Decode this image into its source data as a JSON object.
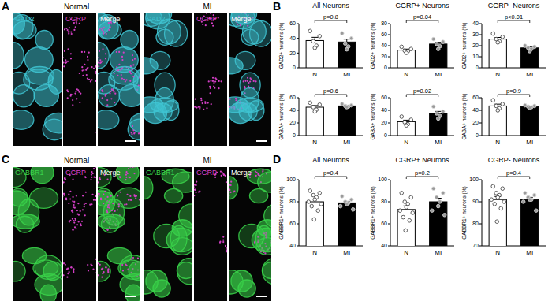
{
  "panel_labels": [
    "A",
    "B",
    "C",
    "D"
  ],
  "image_panels": [
    {
      "conditions": [
        "Normal",
        "MI"
      ],
      "channels": [
        "GAD2",
        "CGRP",
        "Merge"
      ],
      "channel_colors": [
        "#3fc4d2",
        "#d43fc6"
      ]
    },
    {
      "conditions": [
        "Normal",
        "MI"
      ],
      "channels": [
        "GABBR1",
        "CGRP",
        "Merge"
      ],
      "channel_colors": [
        "#3ad24a",
        "#d43fc6"
      ]
    }
  ],
  "chart_data": [
    {
      "type": "bar",
      "title": "All Neurons",
      "categories": [
        "N",
        "MI"
      ],
      "values": [
        37,
        35
      ],
      "errors": [
        4.4,
        3.9
      ],
      "points": [
        [
          50,
          43,
          36,
          30,
          27
        ],
        [
          47,
          40,
          33,
          29,
          25
        ]
      ],
      "ylabel": "GAD2+ neurons (%)",
      "ylim": [
        0,
        60
      ],
      "yticks": [
        0,
        20,
        40,
        60
      ],
      "colors": [
        "#ffffff",
        "#000000"
      ],
      "annotation": "p=0.8"
    },
    {
      "type": "bar",
      "title": "CGRP+ Neurons",
      "categories": [
        "N",
        "MI"
      ],
      "values": [
        32,
        43
      ],
      "errors": [
        1.9,
        3.2
      ],
      "points": [
        [
          38,
          34,
          31,
          30,
          27
        ],
        [
          52,
          47,
          43,
          39,
          34
        ]
      ],
      "ylabel": "GAD2+ neurons (%)",
      "ylim": [
        0,
        80
      ],
      "yticks": [
        0,
        20,
        40,
        60,
        80
      ],
      "colors": [
        "#ffffff",
        "#000000"
      ],
      "annotation": "p=0.04"
    },
    {
      "type": "bar",
      "title": "CGRP- Neurons",
      "categories": [
        "N",
        "MI"
      ],
      "values": [
        26,
        18
      ],
      "errors": [
        1.5,
        0.9
      ],
      "points": [
        [
          31,
          28,
          26,
          24,
          23
        ],
        [
          20,
          19,
          18,
          17,
          15
        ]
      ],
      "ylabel": "GAD2+ neurons (%)",
      "ylim": [
        0,
        40
      ],
      "yticks": [
        0,
        10,
        20,
        30,
        40
      ],
      "colors": [
        "#ffffff",
        "#000000"
      ],
      "annotation": "p<0.01"
    },
    {
      "type": "bar",
      "categories": [
        "N",
        "MI"
      ],
      "values": [
        45,
        47
      ],
      "errors": [
        2.6,
        0.9
      ],
      "points": [
        [
          52,
          49,
          45,
          41,
          38
        ],
        [
          50,
          48,
          47,
          46,
          45
        ]
      ],
      "ylabel": "GABA+ neurons (%)",
      "ylim": [
        0,
        60
      ],
      "yticks": [
        0,
        20,
        40,
        60
      ],
      "colors": [
        "#ffffff",
        "#000000"
      ],
      "annotation": "p=0.6"
    },
    {
      "type": "bar",
      "categories": [
        "N",
        "MI"
      ],
      "values": [
        22,
        35
      ],
      "errors": [
        2.5,
        3.3
      ],
      "points": [
        [
          30,
          25,
          21,
          18,
          16
        ],
        [
          46,
          38,
          35,
          31,
          27
        ]
      ],
      "ylabel": "GABA+ neurons (%)",
      "ylim": [
        0,
        60
      ],
      "yticks": [
        0,
        20,
        40,
        60
      ],
      "colors": [
        "#ffffff",
        "#000000"
      ],
      "annotation": "p=0.02"
    },
    {
      "type": "bar",
      "categories": [
        "N",
        "MI"
      ],
      "values": [
        47,
        46
      ],
      "errors": [
        2.8,
        0.7
      ],
      "points": [
        [
          56,
          50,
          47,
          43,
          40
        ],
        [
          48,
          47,
          46,
          45,
          44
        ]
      ],
      "ylabel": "GABA+ neurons (%)",
      "ylim": [
        0,
        60
      ],
      "yticks": [
        0,
        20,
        40,
        60
      ],
      "colors": [
        "#ffffff",
        "#000000"
      ],
      "annotation": "p=0.9"
    },
    {
      "type": "bar",
      "title": "All Neurons",
      "categories": [
        "N",
        "MI"
      ],
      "values": [
        80,
        79
      ],
      "errors": [
        2.5,
        1.4
      ],
      "points": [
        [
          90,
          88,
          86,
          84,
          82,
          80,
          78,
          76,
          72,
          64
        ],
        [
          85,
          82,
          80,
          79,
          78,
          76,
          73
        ]
      ],
      "ylabel": "GABBR1+ neurons (%)",
      "ylim": [
        40,
        100
      ],
      "yticks": [
        40,
        60,
        80,
        100
      ],
      "colors": [
        "#ffffff",
        "#000000"
      ],
      "annotation": "p=0.4"
    },
    {
      "type": "bar",
      "title": "CGRP+ Neurons",
      "categories": [
        "N",
        "MI"
      ],
      "values": [
        73,
        80
      ],
      "errors": [
        3.2,
        3.2
      ],
      "points": [
        [
          88,
          84,
          80,
          78,
          75,
          72,
          70,
          66,
          63,
          54
        ],
        [
          92,
          88,
          84,
          80,
          76,
          72,
          68
        ]
      ],
      "ylabel": "GABBR1+ neurons (%)",
      "ylim": [
        40,
        100
      ],
      "yticks": [
        40,
        60,
        80,
        100
      ],
      "colors": [
        "#ffffff",
        "#000000"
      ],
      "annotation": "p=0.2"
    },
    {
      "type": "bar",
      "title": "CGRP- Neurons",
      "categories": [
        "N",
        "MI"
      ],
      "values": [
        91,
        91
      ],
      "errors": [
        1.4,
        1.0
      ],
      "points": [
        [
          97,
          96,
          94,
          93,
          92,
          91,
          90,
          89,
          87,
          81
        ],
        [
          94,
          93,
          92,
          91,
          91,
          90,
          86
        ]
      ],
      "ylabel": "GABBR1+ neurons (%)",
      "ylim": [
        70,
        100
      ],
      "yticks": [
        70,
        80,
        90,
        100
      ],
      "colors": [
        "#ffffff",
        "#000000"
      ],
      "annotation": "p=0.4"
    }
  ]
}
